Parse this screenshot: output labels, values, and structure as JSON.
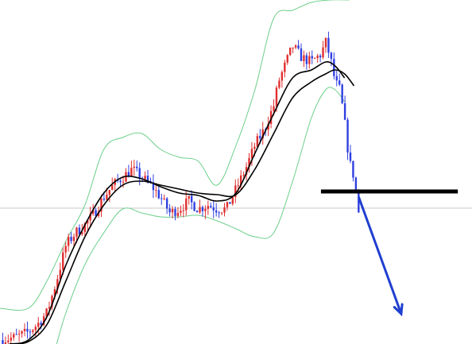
{
  "chart_data": {
    "type": "candlestick",
    "title": "",
    "xlabel": "",
    "ylabel": "",
    "grid": false,
    "legend": "none",
    "ylim": [
      0,
      433
    ],
    "x_range": [
      0,
      100
    ],
    "colors": {
      "background": "#ffffff",
      "bull_candle": "#e03030",
      "bear_candle": "#3040e0",
      "bollinger_band": "#6ccf8a",
      "moving_average": "#000000",
      "reference_line": "#c8c8c8",
      "support_line": "#000000",
      "forecast_arrow": "#1f3fd0"
    },
    "price_path": [
      [
        0,
        5
      ],
      [
        3,
        8
      ],
      [
        6,
        15
      ],
      [
        8,
        25
      ],
      [
        10,
        40
      ],
      [
        12,
        80
      ],
      [
        14,
        125
      ],
      [
        16,
        140
      ],
      [
        18,
        150
      ],
      [
        20,
        165
      ],
      [
        22,
        185
      ],
      [
        24,
        200
      ],
      [
        26,
        210
      ],
      [
        28,
        220
      ],
      [
        30,
        210
      ],
      [
        32,
        200
      ],
      [
        34,
        185
      ],
      [
        36,
        165
      ],
      [
        38,
        170
      ],
      [
        40,
        180
      ],
      [
        42,
        170
      ],
      [
        44,
        175
      ],
      [
        46,
        170
      ],
      [
        48,
        170
      ],
      [
        50,
        195
      ],
      [
        52,
        220
      ],
      [
        54,
        250
      ],
      [
        56,
        270
      ],
      [
        58,
        300
      ],
      [
        59,
        330
      ],
      [
        61,
        360
      ],
      [
        62,
        375
      ],
      [
        64,
        360
      ],
      [
        66,
        355
      ],
      [
        68,
        365
      ],
      [
        69,
        380
      ],
      [
        70,
        360
      ],
      [
        71,
        330
      ],
      [
        72,
        320
      ],
      [
        73,
        280
      ],
      [
        74,
        230
      ],
      [
        75,
        210
      ],
      [
        76,
        165
      ]
    ],
    "moving_average_fast": [
      [
        2,
        0
      ],
      [
        6,
        5
      ],
      [
        10,
        35
      ],
      [
        14,
        100
      ],
      [
        18,
        150
      ],
      [
        22,
        190
      ],
      [
        26,
        210
      ],
      [
        30,
        208
      ],
      [
        34,
        198
      ],
      [
        38,
        190
      ],
      [
        42,
        187
      ],
      [
        46,
        180
      ],
      [
        50,
        190
      ],
      [
        54,
        240
      ],
      [
        58,
        290
      ],
      [
        62,
        335
      ],
      [
        66,
        345
      ],
      [
        69,
        355
      ],
      [
        71,
        350
      ],
      [
        73,
        335
      ]
    ],
    "moving_average_slow": [
      [
        2,
        0
      ],
      [
        6,
        3
      ],
      [
        10,
        25
      ],
      [
        14,
        80
      ],
      [
        18,
        135
      ],
      [
        22,
        175
      ],
      [
        26,
        200
      ],
      [
        30,
        205
      ],
      [
        34,
        200
      ],
      [
        38,
        195
      ],
      [
        42,
        190
      ],
      [
        46,
        188
      ],
      [
        50,
        188
      ],
      [
        54,
        220
      ],
      [
        58,
        265
      ],
      [
        62,
        310
      ],
      [
        66,
        330
      ],
      [
        69,
        340
      ],
      [
        71,
        345
      ],
      [
        73,
        340
      ],
      [
        75,
        325
      ]
    ],
    "bollinger_upper": [
      [
        0,
        45
      ],
      [
        6,
        45
      ],
      [
        10,
        80
      ],
      [
        14,
        130
      ],
      [
        18,
        175
      ],
      [
        22,
        245
      ],
      [
        26,
        260
      ],
      [
        30,
        265
      ],
      [
        34,
        245
      ],
      [
        38,
        235
      ],
      [
        42,
        230
      ],
      [
        46,
        200
      ],
      [
        50,
        250
      ],
      [
        54,
        320
      ],
      [
        58,
        410
      ],
      [
        62,
        420
      ],
      [
        66,
        430
      ],
      [
        70,
        433
      ],
      [
        74,
        433
      ]
    ],
    "bollinger_lower": [
      [
        12,
        0
      ],
      [
        14,
        40
      ],
      [
        18,
        100
      ],
      [
        22,
        140
      ],
      [
        26,
        170
      ],
      [
        30,
        165
      ],
      [
        34,
        160
      ],
      [
        38,
        160
      ],
      [
        42,
        162
      ],
      [
        46,
        155
      ],
      [
        50,
        145
      ],
      [
        54,
        135
      ],
      [
        58,
        140
      ],
      [
        62,
        205
      ],
      [
        66,
        285
      ],
      [
        69,
        320
      ],
      [
        71,
        320
      ],
      [
        73,
        305
      ]
    ],
    "reference_level": 171,
    "support_level": 192,
    "support_span": [
      68,
      97
    ],
    "forecast_arrow": {
      "from": [
        76,
        185
      ],
      "to": [
        85,
        38
      ]
    }
  }
}
